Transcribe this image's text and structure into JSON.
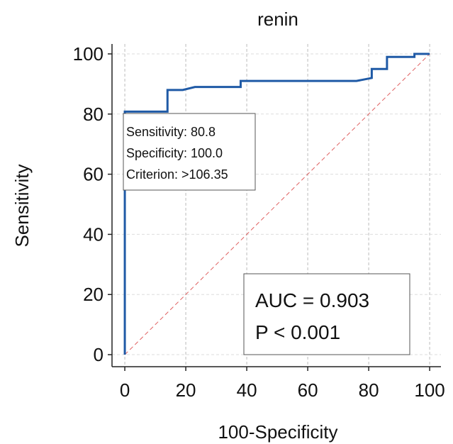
{
  "chart_data": {
    "type": "line",
    "title": "renin",
    "x_label": "100-Specificity",
    "y_label": "Sensitivity",
    "xlim": [
      -4.2,
      103.7
    ],
    "ylim": [
      -4,
      103.3
    ],
    "xticks": [
      0,
      20,
      40,
      60,
      80,
      100
    ],
    "yticks": [
      0,
      20,
      40,
      60,
      80,
      100
    ],
    "grid": true,
    "series": [
      {
        "color": "#1f5aa6",
        "x": [
          0,
          0,
          14,
          14,
          19,
          23,
          38,
          38,
          76,
          81,
          81,
          86,
          86,
          95,
          95,
          100
        ],
        "values": [
          0,
          80.8,
          80.8,
          88,
          88,
          89,
          89,
          91,
          91,
          92,
          95,
          95,
          99,
          99,
          100,
          100
        ]
      },
      {
        "color": "#e06060",
        "dashed": true,
        "x": [
          0,
          100
        ],
        "values": [
          0,
          100
        ]
      }
    ],
    "annotations": {
      "criterion_box": [
        "Sensitivity: 80.8",
        "Specificity: 100.0",
        "Criterion: >106.35"
      ],
      "auc_box": [
        "AUC = 0.903",
        "P < 0.001"
      ]
    }
  }
}
